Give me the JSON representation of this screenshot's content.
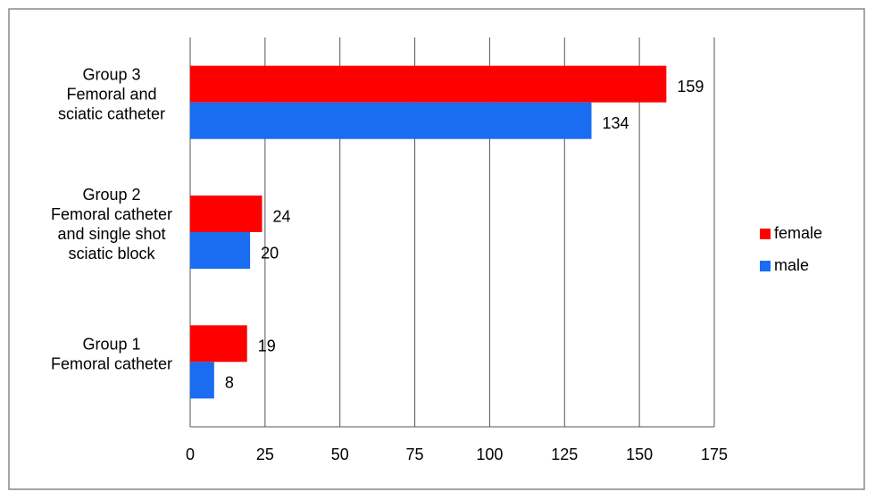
{
  "chart_data": {
    "type": "hbar",
    "categories": [
      "Group 3\nFemoral and\nsciatic catheter",
      "Group 2\nFemoral catheter\nand single shot\nsciatic block",
      "Group 1\nFemoral catheter"
    ],
    "series": [
      {
        "name": "female",
        "color": "#ff0000",
        "values": [
          159,
          24,
          19
        ]
      },
      {
        "name": "male",
        "color": "#1a6cf0",
        "values": [
          134,
          20,
          8
        ]
      }
    ],
    "xlim": [
      0,
      175
    ],
    "xticks": [
      0,
      25,
      50,
      75,
      100,
      125,
      150,
      175
    ],
    "grid": true,
    "legend": "right"
  }
}
